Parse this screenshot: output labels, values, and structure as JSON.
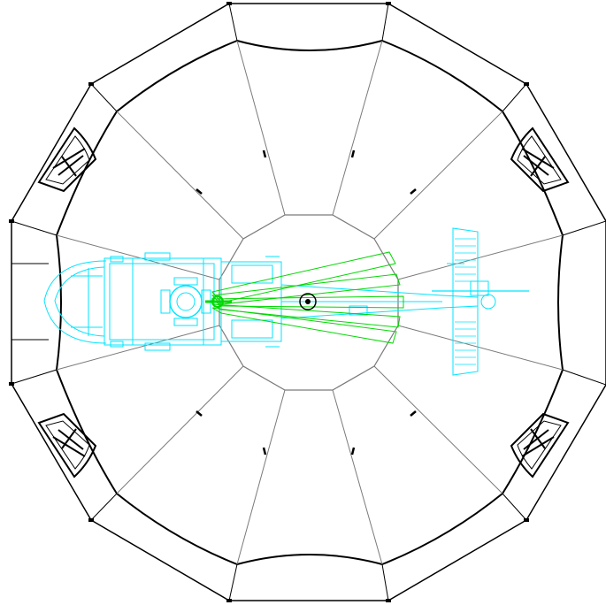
{
  "colors": {
    "background": "#ffffff",
    "tent_outline": "#000000",
    "tent_panel_lines": "#7a7a7a",
    "helicopter": "#00e5ff",
    "rotor_blades": "#00d800"
  },
  "diagram": {
    "tent_sides": 12,
    "window_count": 4,
    "rotor_blade_count": 5
  }
}
